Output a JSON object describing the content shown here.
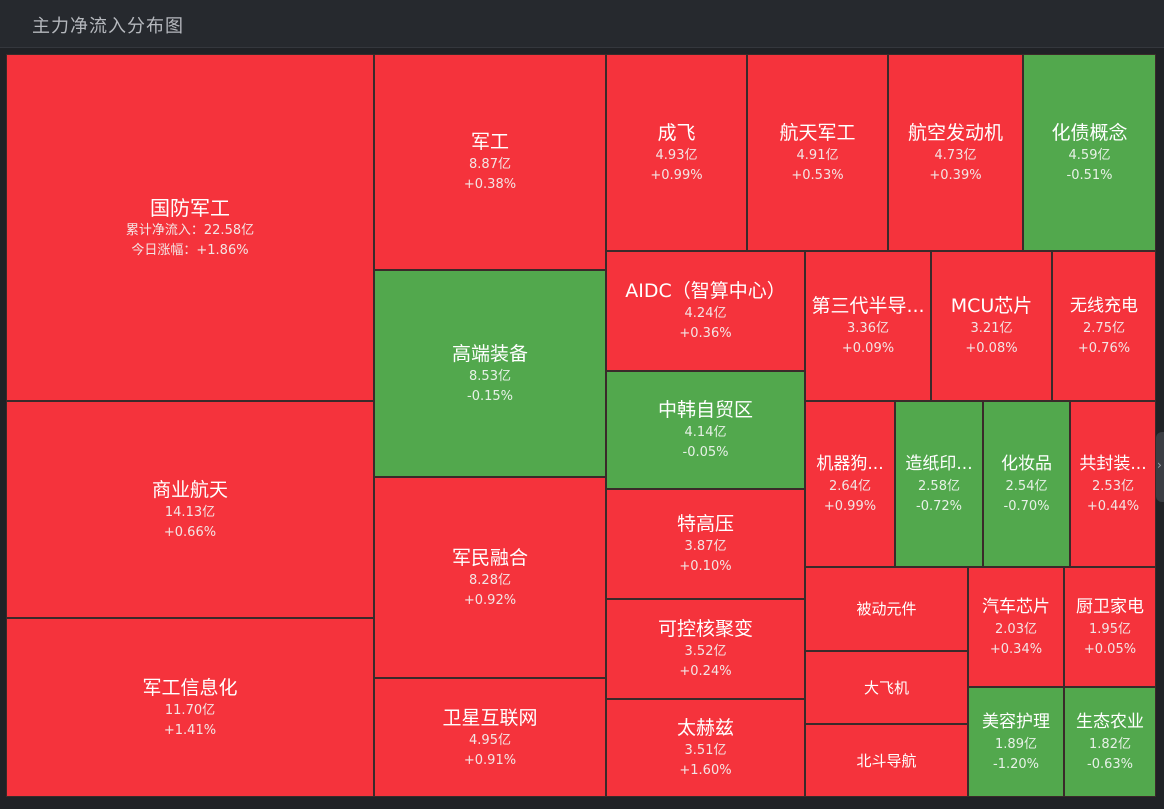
{
  "header": {
    "title": "主力净流入分布图"
  },
  "colors": {
    "up": "#f5333c",
    "down": "#52a84d",
    "border": "#3a2a2a"
  },
  "chart_data": {
    "type": "treemap",
    "title": "主力净流入分布图",
    "units": "亿",
    "items": [
      {
        "name": "国防军工",
        "value": 22.58,
        "change_pct": 1.86,
        "value_label": "累计净流入：22.58亿",
        "change_label": "今日涨幅：+1.86%"
      },
      {
        "name": "商业航天",
        "value": 14.13,
        "change_pct": 0.66,
        "value_label": "14.13亿",
        "change_label": "+0.66%"
      },
      {
        "name": "军工信息化",
        "value": 11.7,
        "change_pct": 1.41,
        "value_label": "11.70亿",
        "change_label": "+1.41%"
      },
      {
        "name": "军工",
        "value": 8.87,
        "change_pct": 0.38,
        "value_label": "8.87亿",
        "change_label": "+0.38%"
      },
      {
        "name": "高端装备",
        "value": 8.53,
        "change_pct": -0.15,
        "value_label": "8.53亿",
        "change_label": "-0.15%"
      },
      {
        "name": "军民融合",
        "value": 8.28,
        "change_pct": 0.92,
        "value_label": "8.28亿",
        "change_label": "+0.92%"
      },
      {
        "name": "卫星互联网",
        "value": 4.95,
        "change_pct": 0.91,
        "value_label": "4.95亿",
        "change_label": "+0.91%"
      },
      {
        "name": "成飞",
        "value": 4.93,
        "change_pct": 0.99,
        "value_label": "4.93亿",
        "change_label": "+0.99%"
      },
      {
        "name": "航天军工",
        "value": 4.91,
        "change_pct": 0.53,
        "value_label": "4.91亿",
        "change_label": "+0.53%"
      },
      {
        "name": "航空发动机",
        "value": 4.73,
        "change_pct": 0.39,
        "value_label": "4.73亿",
        "change_label": "+0.39%"
      },
      {
        "name": "化债概念",
        "value": 4.59,
        "change_pct": -0.51,
        "value_label": "4.59亿",
        "change_label": "-0.51%"
      },
      {
        "name": "AIDC（智算中心）",
        "value": 4.24,
        "change_pct": 0.36,
        "value_label": "4.24亿",
        "change_label": "+0.36%"
      },
      {
        "name": "中韩自贸区",
        "value": 4.14,
        "change_pct": -0.05,
        "value_label": "4.14亿",
        "change_label": "-0.05%"
      },
      {
        "name": "特高压",
        "value": 3.87,
        "change_pct": 0.1,
        "value_label": "3.87亿",
        "change_label": "+0.10%"
      },
      {
        "name": "可控核聚变",
        "value": 3.52,
        "change_pct": 0.24,
        "value_label": "3.52亿",
        "change_label": "+0.24%"
      },
      {
        "name": "太赫兹",
        "value": 3.51,
        "change_pct": 1.6,
        "value_label": "3.51亿",
        "change_label": "+1.60%"
      },
      {
        "name": "第三代半导...",
        "value": 3.36,
        "change_pct": 0.09,
        "value_label": "3.36亿",
        "change_label": "+0.09%"
      },
      {
        "name": "MCU芯片",
        "value": 3.21,
        "change_pct": 0.08,
        "value_label": "3.21亿",
        "change_label": "+0.08%"
      },
      {
        "name": "无线充电",
        "value": 2.75,
        "change_pct": 0.76,
        "value_label": "2.75亿",
        "change_label": "+0.76%"
      },
      {
        "name": "机器狗...",
        "value": 2.64,
        "change_pct": 0.99,
        "value_label": "2.64亿",
        "change_label": "+0.99%"
      },
      {
        "name": "造纸印...",
        "value": 2.58,
        "change_pct": -0.72,
        "value_label": "2.58亿",
        "change_label": "-0.72%"
      },
      {
        "name": "化妆品",
        "value": 2.54,
        "change_pct": -0.7,
        "value_label": "2.54亿",
        "change_label": "-0.70%"
      },
      {
        "name": "共封装...",
        "value": 2.53,
        "change_pct": 0.44,
        "value_label": "2.53亿",
        "change_label": "+0.44%"
      },
      {
        "name": "被动元件",
        "value": null,
        "change_pct": null,
        "value_label": "",
        "change_label": ""
      },
      {
        "name": "汽车芯片",
        "value": 2.03,
        "change_pct": 0.34,
        "value_label": "2.03亿",
        "change_label": "+0.34%"
      },
      {
        "name": "厨卫家电",
        "value": 1.95,
        "change_pct": 0.05,
        "value_label": "1.95亿",
        "change_label": "+0.05%"
      },
      {
        "name": "大飞机",
        "value": null,
        "change_pct": null,
        "value_label": "",
        "change_label": ""
      },
      {
        "name": "北斗导航",
        "value": null,
        "change_pct": null,
        "value_label": "",
        "change_label": ""
      },
      {
        "name": "美容护理",
        "value": 1.89,
        "change_pct": -1.2,
        "value_label": "1.89亿",
        "change_label": "-1.20%"
      },
      {
        "name": "生态农业",
        "value": 1.82,
        "change_pct": -0.63,
        "value_label": "1.82亿",
        "change_label": "-0.63%"
      }
    ]
  }
}
